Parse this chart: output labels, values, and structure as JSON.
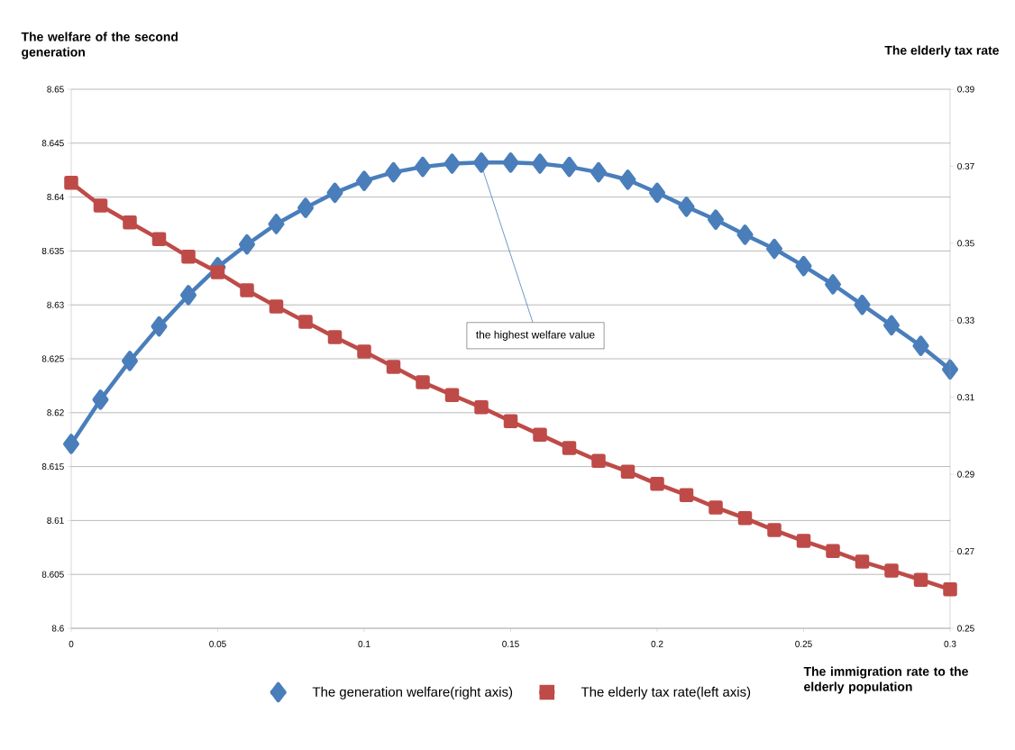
{
  "chart_data": {
    "type": "line",
    "ylabel": "The welfare of the second generation",
    "y2label": "The elderly tax rate",
    "xlabel": "The immigration rate to the elderly population",
    "x": [
      0,
      0.01,
      0.02,
      0.03,
      0.04,
      0.05,
      0.06,
      0.07,
      0.08,
      0.09,
      0.1,
      0.11,
      0.12,
      0.13,
      0.14,
      0.15,
      0.16,
      0.17,
      0.18,
      0.19,
      0.2,
      0.21,
      0.22,
      0.23,
      0.24,
      0.25,
      0.26,
      0.27,
      0.28,
      0.29,
      0.3
    ],
    "series": [
      {
        "name": "The generation welfare(right axis)",
        "color": "#4a7ebb",
        "marker": "diamond",
        "values": [
          8.6171,
          8.6212,
          8.6248,
          8.628,
          8.6309,
          8.6335,
          8.6356,
          8.6375,
          8.639,
          8.6404,
          8.6415,
          8.6423,
          8.6428,
          8.6431,
          8.6432,
          8.6432,
          8.6431,
          8.6428,
          8.6423,
          8.6416,
          8.6404,
          8.6391,
          8.6379,
          8.6365,
          8.6352,
          8.6336,
          8.6319,
          8.63,
          8.6281,
          8.6262,
          8.624
        ]
      },
      {
        "name": "The elderly tax rate(left axis)",
        "color": "#be4b48",
        "marker": "square",
        "axis": "y2",
        "values": [
          0.3657,
          0.3598,
          0.3554,
          0.3511,
          0.3465,
          0.3425,
          0.3378,
          0.3336,
          0.3296,
          0.3256,
          0.3219,
          0.3179,
          0.3139,
          0.3106,
          0.3074,
          0.3038,
          0.3003,
          0.2968,
          0.2935,
          0.2907,
          0.2875,
          0.2846,
          0.2814,
          0.2786,
          0.2755,
          0.2727,
          0.2701,
          0.2673,
          0.265,
          0.2626,
          0.2601
        ]
      }
    ],
    "xlim": [
      0,
      0.3
    ],
    "xticks": [
      0,
      0.05,
      0.1,
      0.15,
      0.2,
      0.25,
      0.3
    ],
    "ylim": [
      8.6,
      8.65
    ],
    "yticks": [
      8.6,
      8.605,
      8.61,
      8.615,
      8.62,
      8.625,
      8.63,
      8.635,
      8.64,
      8.645,
      8.65
    ],
    "y2lim": [
      0.25,
      0.39
    ],
    "y2ticks": [
      0.25,
      0.27,
      0.29,
      0.31,
      0.33,
      0.35,
      0.37,
      0.39
    ],
    "grid": "y",
    "legend": "bottom",
    "annotations": [
      {
        "text": "the highest welfare value",
        "x": 0.14,
        "y": 8.6432
      }
    ]
  }
}
